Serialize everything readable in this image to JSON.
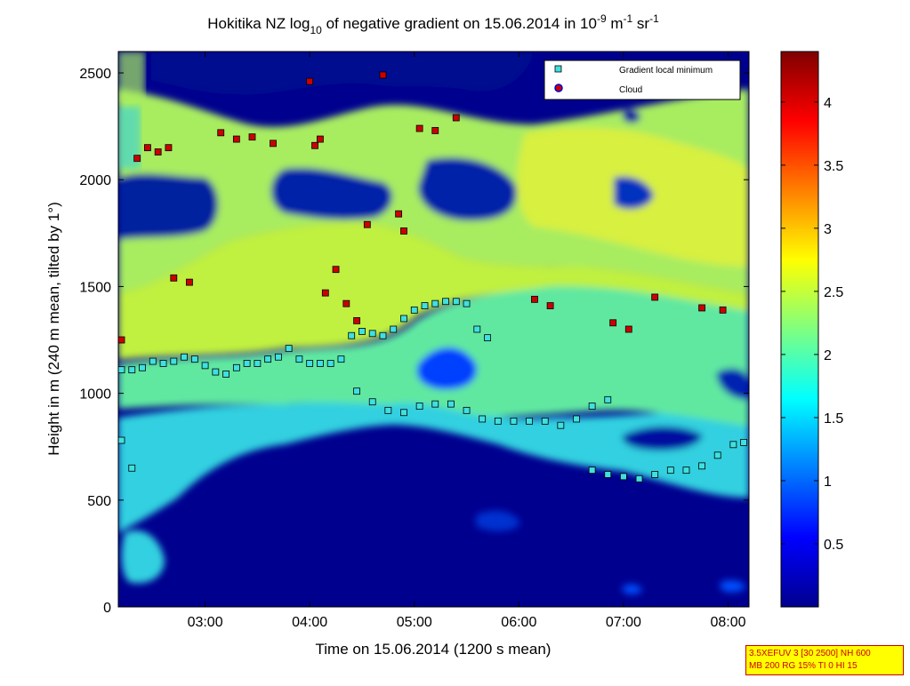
{
  "chart_data": {
    "type": "heatmap",
    "title": "Hokitika NZ log10 of negative gradient on 15.06.2014 in 10-9 m-1 sr-1",
    "title_parts": {
      "main": "Hokitika NZ log",
      "sub1": "10",
      "mid": " of negative gradient on 15.06.2014 in 10",
      "sup1": "-9",
      "mid2": " m",
      "sup2": "-1",
      "mid3": " sr",
      "sup3": "-1"
    },
    "xlabel": "Time on 15.06.2014 (1200 s mean)",
    "ylabel": "Height in m (240 m mean, tilted by 1°)",
    "x_ticks": [
      "03:00",
      "04:00",
      "05:00",
      "06:00",
      "07:00",
      "08:00"
    ],
    "x_tick_hours": [
      3,
      4,
      5,
      6,
      7,
      8
    ],
    "xlim_hours": [
      2.17,
      8.2
    ],
    "y_ticks": [
      "0",
      "500",
      "1000",
      "1500",
      "2000",
      "2500"
    ],
    "y_tick_values": [
      0,
      500,
      1000,
      1500,
      2000,
      2500
    ],
    "ylim": [
      0,
      2600
    ],
    "colorbar": {
      "colormap": "jet",
      "ticks": [
        "0.5",
        "1",
        "1.5",
        "2",
        "2.5",
        "3",
        "3.5",
        "4"
      ],
      "tick_values": [
        0.5,
        1,
        1.5,
        2,
        2.5,
        3,
        3.5,
        4
      ],
      "range": [
        0,
        4.4
      ]
    },
    "legend": {
      "placement": "top-right",
      "entries": [
        {
          "label": "Gradient local minimum",
          "marker": "square",
          "color": "#40e0e0"
        },
        {
          "label": "Cloud",
          "marker": "circle",
          "color": "#cc0000",
          "edge": "#0000cc"
        }
      ]
    },
    "series": [
      {
        "name": "Gradient local minimum",
        "points": [
          [
            2.2,
            1110
          ],
          [
            2.3,
            1110
          ],
          [
            2.4,
            1120
          ],
          [
            2.5,
            1150
          ],
          [
            2.6,
            1140
          ],
          [
            2.7,
            1150
          ],
          [
            2.8,
            1170
          ],
          [
            2.9,
            1160
          ],
          [
            3.0,
            1130
          ],
          [
            3.1,
            1100
          ],
          [
            3.2,
            1090
          ],
          [
            3.3,
            1120
          ],
          [
            3.4,
            1140
          ],
          [
            3.5,
            1140
          ],
          [
            3.6,
            1160
          ],
          [
            3.7,
            1170
          ],
          [
            3.8,
            1210
          ],
          [
            3.9,
            1160
          ],
          [
            4.0,
            1140
          ],
          [
            4.1,
            1140
          ],
          [
            4.2,
            1140
          ],
          [
            4.3,
            1160
          ],
          [
            4.4,
            1270
          ],
          [
            4.5,
            1290
          ],
          [
            4.6,
            1280
          ],
          [
            4.7,
            1270
          ],
          [
            4.8,
            1300
          ],
          [
            4.9,
            1350
          ],
          [
            5.0,
            1390
          ],
          [
            5.1,
            1410
          ],
          [
            5.2,
            1420
          ],
          [
            5.3,
            1430
          ],
          [
            5.4,
            1430
          ],
          [
            5.5,
            1420
          ],
          [
            5.6,
            1300
          ],
          [
            5.7,
            1260
          ],
          [
            4.45,
            1010
          ],
          [
            4.6,
            960
          ],
          [
            4.75,
            920
          ],
          [
            4.9,
            910
          ],
          [
            5.05,
            940
          ],
          [
            5.2,
            950
          ],
          [
            5.35,
            950
          ],
          [
            5.5,
            920
          ],
          [
            5.65,
            880
          ],
          [
            5.8,
            870
          ],
          [
            5.95,
            870
          ],
          [
            6.1,
            870
          ],
          [
            6.25,
            870
          ],
          [
            6.4,
            850
          ],
          [
            6.55,
            880
          ],
          [
            6.7,
            940
          ],
          [
            6.85,
            970
          ],
          [
            6.7,
            640
          ],
          [
            6.85,
            620
          ],
          [
            7.0,
            610
          ],
          [
            7.15,
            600
          ],
          [
            7.3,
            620
          ],
          [
            7.45,
            640
          ],
          [
            7.6,
            640
          ],
          [
            7.75,
            660
          ],
          [
            7.9,
            710
          ],
          [
            8.05,
            760
          ],
          [
            8.15,
            770
          ],
          [
            2.2,
            780
          ],
          [
            2.3,
            650
          ]
        ]
      },
      {
        "name": "Cloud",
        "points": [
          [
            2.35,
            2100
          ],
          [
            2.45,
            2150
          ],
          [
            2.55,
            2130
          ],
          [
            2.65,
            2150
          ],
          [
            3.15,
            2220
          ],
          [
            3.3,
            2190
          ],
          [
            3.45,
            2200
          ],
          [
            3.65,
            2170
          ],
          [
            4.05,
            2160
          ],
          [
            4.1,
            2190
          ],
          [
            4.7,
            2490
          ],
          [
            5.05,
            2240
          ],
          [
            5.2,
            2230
          ],
          [
            5.4,
            2290
          ],
          [
            4.0,
            2460
          ],
          [
            4.55,
            1790
          ],
          [
            4.85,
            1840
          ],
          [
            4.9,
            1760
          ],
          [
            4.25,
            1580
          ],
          [
            4.15,
            1470
          ],
          [
            4.35,
            1420
          ],
          [
            4.45,
            1340
          ],
          [
            6.15,
            1440
          ],
          [
            6.3,
            1410
          ],
          [
            6.9,
            1330
          ],
          [
            7.05,
            1300
          ],
          [
            7.3,
            1450
          ],
          [
            7.75,
            1400
          ],
          [
            7.95,
            1390
          ],
          [
            2.7,
            1540
          ],
          [
            2.85,
            1520
          ],
          [
            2.2,
            1250
          ]
        ]
      }
    ]
  },
  "infobox": {
    "line1": "3.5XEFUV 3 [30 2500] NH 600",
    "line2": "MB 200 RG 15% TI 0 HI 15"
  }
}
